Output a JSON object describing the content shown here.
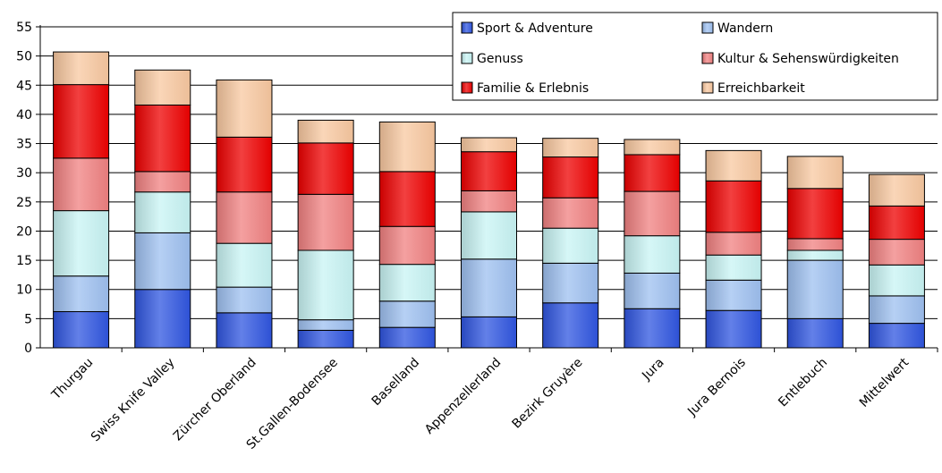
{
  "chart_data": {
    "type": "bar",
    "stacked": true,
    "categories": [
      "Thurgau",
      "Swiss Knife Valley",
      "Zürcher Oberland",
      "St.Gallen-Bodensee",
      "Baselland",
      "Appenzellerland",
      "Bezirk Gruyère",
      "Jura",
      "Jura Bernois",
      "Entlebuch",
      "Mittelwert"
    ],
    "series": [
      {
        "name": "Sport & Adventure",
        "color": "#2F55E0",
        "values": [
          6.2,
          10.0,
          6.0,
          3.0,
          3.5,
          5.3,
          7.7,
          6.7,
          6.4,
          5.0,
          4.2
        ]
      },
      {
        "name": "Wandern",
        "color": "#9EC0F0",
        "values": [
          6.1,
          9.7,
          4.4,
          1.8,
          4.5,
          9.9,
          6.8,
          6.1,
          5.2,
          10.0,
          4.7
        ]
      },
      {
        "name": "Genuss",
        "color": "#C8F4F4",
        "values": [
          11.2,
          7.0,
          7.5,
          11.9,
          6.3,
          8.1,
          6.0,
          6.4,
          4.3,
          1.7,
          5.3
        ]
      },
      {
        "name": "Kultur & Sehenswürdigkeiten",
        "color": "#F08080",
        "values": [
          9.0,
          3.5,
          8.8,
          9.6,
          6.5,
          3.6,
          5.2,
          7.6,
          3.9,
          2.0,
          4.4
        ]
      },
      {
        "name": "Familie & Erlebnis",
        "color": "#EE0000",
        "values": [
          12.6,
          11.4,
          9.4,
          8.8,
          9.4,
          6.7,
          7.0,
          6.3,
          8.8,
          8.6,
          5.7
        ]
      },
      {
        "name": "Erreichbarkeit",
        "color": "#F8C8A0",
        "values": [
          5.6,
          6.0,
          9.8,
          3.9,
          8.5,
          2.4,
          3.2,
          2.6,
          5.2,
          5.5,
          5.4
        ]
      }
    ],
    "y_ticks": [
      "0",
      "5",
      "10",
      "15",
      "20",
      "25",
      "30",
      "35",
      "40",
      "45",
      "50",
      "55"
    ],
    "ylim": [
      0,
      55
    ],
    "xlabel": "",
    "ylabel": "",
    "grid": true,
    "legend_position": "top-right"
  }
}
